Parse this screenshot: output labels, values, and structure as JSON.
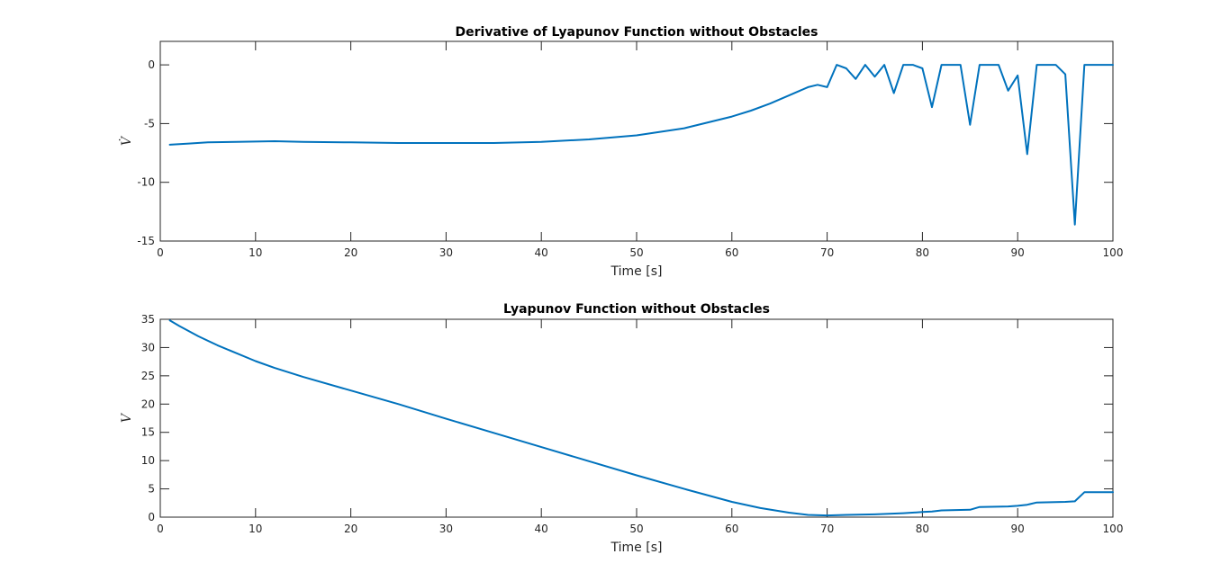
{
  "chart_data": [
    {
      "type": "line",
      "title": "Derivative of Lyapunov Function without Obstacles",
      "xlabel": "Time [s]",
      "ylabel": "V̇",
      "xlim": [
        0,
        100
      ],
      "ylim": [
        -15,
        2
      ],
      "xticks": [
        0,
        10,
        20,
        30,
        40,
        50,
        60,
        70,
        80,
        90,
        100
      ],
      "yticks": [
        -15,
        -10,
        -5,
        0
      ],
      "grid": false,
      "series": [
        {
          "color": "#0072BD",
          "x": [
            1,
            3,
            5,
            8,
            12,
            15,
            20,
            25,
            30,
            35,
            40,
            45,
            50,
            55,
            60,
            62,
            64,
            66,
            68,
            69,
            70,
            71,
            72,
            73,
            74,
            75,
            76,
            77,
            78,
            79,
            80,
            81,
            82,
            83,
            84,
            85,
            86,
            87,
            88,
            89,
            90,
            91,
            92,
            93,
            94,
            95,
            96,
            97,
            98,
            99,
            100
          ],
          "y": [
            -6.8,
            -6.7,
            -6.6,
            -6.55,
            -6.5,
            -6.55,
            -6.6,
            -6.65,
            -6.65,
            -6.65,
            -6.55,
            -6.35,
            -6.0,
            -5.4,
            -4.4,
            -3.9,
            -3.3,
            -2.6,
            -1.9,
            -1.7,
            -1.9,
            0.0,
            -0.3,
            -1.2,
            0.0,
            -1.0,
            0.0,
            -2.4,
            0.0,
            0.0,
            -0.3,
            -3.6,
            0.0,
            0.0,
            0.0,
            -5.1,
            0.0,
            0.0,
            0.0,
            -2.2,
            -0.9,
            -7.6,
            0.0,
            0.0,
            0.0,
            -0.8,
            -13.6,
            0.0,
            0.0,
            0.0,
            0.0
          ]
        }
      ]
    },
    {
      "type": "line",
      "title": "Lyapunov Function without Obstacles",
      "xlabel": "Time [s]",
      "ylabel": "V",
      "xlim": [
        0,
        100
      ],
      "ylim": [
        0,
        35
      ],
      "xticks": [
        0,
        10,
        20,
        30,
        40,
        50,
        60,
        70,
        80,
        90,
        100
      ],
      "yticks": [
        0,
        5,
        10,
        15,
        20,
        25,
        30,
        35
      ],
      "grid": false,
      "series": [
        {
          "color": "#0072BD",
          "x": [
            1,
            2,
            4,
            6,
            8,
            10,
            12,
            15,
            20,
            25,
            30,
            35,
            40,
            45,
            50,
            55,
            60,
            63,
            66,
            68,
            70,
            72,
            75,
            78,
            80,
            81,
            82,
            85,
            86,
            89,
            90,
            91,
            92,
            95,
            96,
            97,
            100
          ],
          "y": [
            34.8,
            33.8,
            32.0,
            30.4,
            29.0,
            27.6,
            26.4,
            24.8,
            22.4,
            20.0,
            17.4,
            14.9,
            12.4,
            9.9,
            7.4,
            5.0,
            2.7,
            1.6,
            0.8,
            0.4,
            0.3,
            0.4,
            0.5,
            0.7,
            0.9,
            1.0,
            1.2,
            1.3,
            1.8,
            1.9,
            2.0,
            2.2,
            2.6,
            2.7,
            2.8,
            4.4,
            4.4
          ]
        }
      ]
    }
  ]
}
